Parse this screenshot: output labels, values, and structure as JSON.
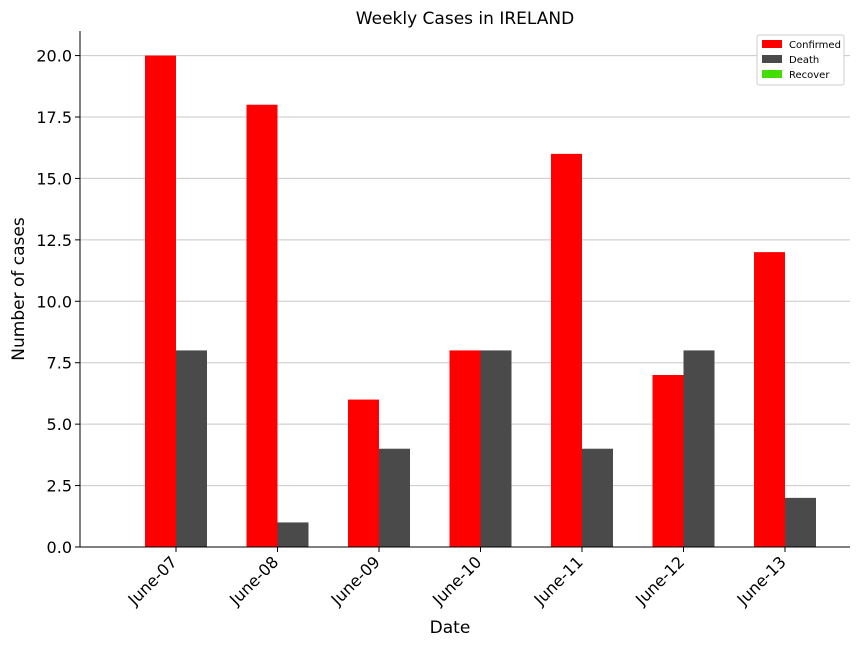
{
  "chart_data": {
    "type": "bar",
    "title": "Weekly Cases in IRELAND",
    "xlabel": "Date",
    "ylabel": "Number of cases",
    "categories": [
      "June-07",
      "June-08",
      "June-09",
      "June-10",
      "June-11",
      "June-12",
      "June-13"
    ],
    "series": [
      {
        "name": "Confirmed",
        "color": "#ff0000",
        "values": [
          20,
          18,
          6,
          8,
          16,
          7,
          12
        ]
      },
      {
        "name": "Death",
        "color": "#4a4a4a",
        "values": [
          8,
          1,
          4,
          8,
          4,
          8,
          2
        ]
      },
      {
        "name": "Recover",
        "color": "#44dd00",
        "values": [
          0,
          0,
          0,
          0,
          0,
          0,
          0
        ]
      }
    ],
    "ylim": [
      0,
      21
    ],
    "yticks": [
      "0.0",
      "2.5",
      "5.0",
      "7.5",
      "10.0",
      "12.5",
      "15.0",
      "17.5",
      "20.0"
    ],
    "grid": "horizontal",
    "legend_position": "top-right"
  }
}
